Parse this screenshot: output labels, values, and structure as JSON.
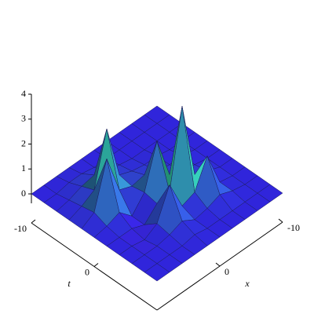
{
  "chart_data": {
    "type": "surface",
    "x": [
      -10,
      -8,
      -6,
      -4,
      -2,
      0,
      2,
      4,
      6,
      8,
      10
    ],
    "y": [
      -10,
      -8,
      -6,
      -4,
      -2,
      0,
      2,
      4,
      6,
      8,
      10
    ],
    "z": [
      [
        0,
        0,
        0,
        0,
        0,
        0,
        0,
        0,
        0,
        0,
        0
      ],
      [
        0,
        0,
        0,
        0,
        0,
        0,
        0,
        0.1,
        0.1,
        0,
        0
      ],
      [
        0,
        0,
        0,
        0,
        0,
        0.1,
        0.2,
        0.4,
        0.3,
        0.1,
        0
      ],
      [
        0,
        0,
        0,
        0.1,
        0.1,
        0.2,
        0.4,
        2.6,
        0.5,
        0.2,
        0
      ],
      [
        0,
        0,
        0.1,
        0.1,
        0.2,
        0.4,
        0.3,
        0.5,
        2.1,
        0.3,
        0
      ],
      [
        0,
        0,
        0.1,
        0.2,
        0.4,
        2.1,
        0.4,
        -0.2,
        0.3,
        0.1,
        0
      ],
      [
        0,
        0,
        0.2,
        0.4,
        3.5,
        0.4,
        0.3,
        -0.2,
        0,
        0,
        0
      ],
      [
        0,
        0,
        0.1,
        1.5,
        0.4,
        0.2,
        1.4,
        0.2,
        -0.1,
        0,
        0
      ],
      [
        0,
        0,
        0.1,
        0.3,
        0.1,
        0,
        0.3,
        0.1,
        0,
        0,
        0
      ],
      [
        0,
        0,
        0,
        0,
        0,
        0,
        0.1,
        0,
        0,
        0,
        0
      ],
      [
        0,
        0,
        0,
        0,
        0,
        0,
        0,
        0,
        0,
        0,
        0
      ]
    ],
    "xlabel": "x",
    "ylabel": "t",
    "xlim": [
      -10,
      10
    ],
    "ylim": [
      -10,
      10
    ],
    "zlim": [
      0,
      4
    ],
    "xticks": [
      -10,
      0
    ],
    "yticks": [
      -10,
      0
    ],
    "zticks": [
      0,
      1,
      2,
      3,
      4
    ],
    "color": "#3428ee",
    "peak_color": "#2ec39c",
    "low_color": "#8a2ae0"
  }
}
